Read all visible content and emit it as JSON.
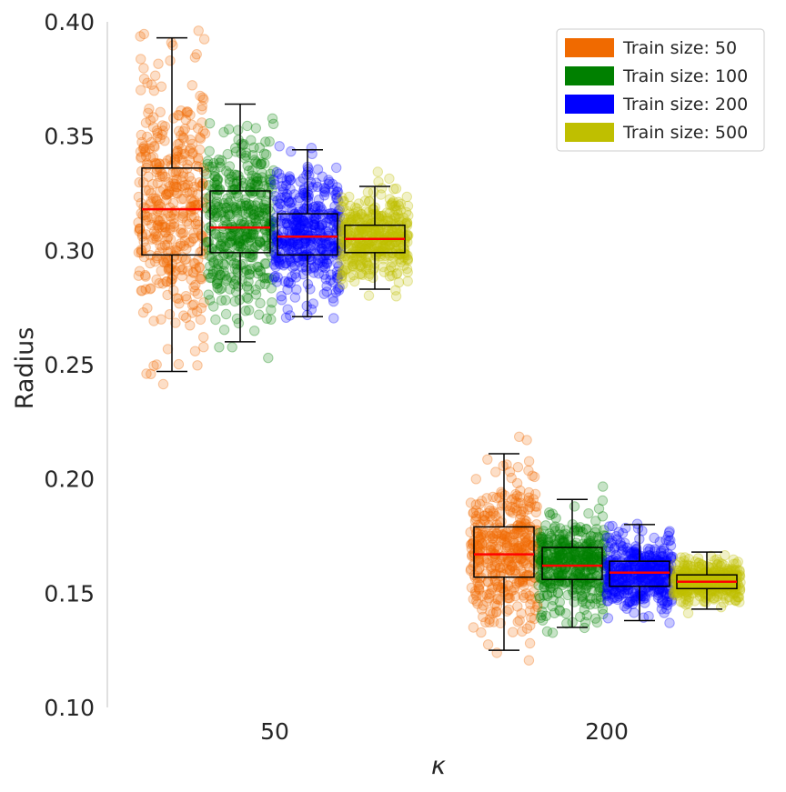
{
  "chart_data": {
    "type": "box",
    "title": "",
    "xlabel": "κ",
    "ylabel": "Radius",
    "categories": [
      "50",
      "200"
    ],
    "ylim": [
      0.1,
      0.4
    ],
    "yticks": [
      "0.10",
      "0.15",
      "0.20",
      "0.25",
      "0.30",
      "0.35",
      "0.40"
    ],
    "grid": false,
    "legend_position": "top-right",
    "series": [
      {
        "name": "Train size: 50",
        "color": "#f06a00",
        "boxes": [
          {
            "whisker_low": 0.247,
            "q1": 0.298,
            "median": 0.318,
            "q3": 0.336,
            "whisker_high": 0.393,
            "points_min": 0.24,
            "points_max": 0.4
          },
          {
            "whisker_low": 0.125,
            "q1": 0.157,
            "median": 0.167,
            "q3": 0.179,
            "whisker_high": 0.211,
            "points_min": 0.118,
            "points_max": 0.23
          }
        ]
      },
      {
        "name": "Train size: 100",
        "color": "#008000",
        "boxes": [
          {
            "whisker_low": 0.26,
            "q1": 0.299,
            "median": 0.31,
            "q3": 0.326,
            "whisker_high": 0.364,
            "points_min": 0.242,
            "points_max": 0.372
          },
          {
            "whisker_low": 0.135,
            "q1": 0.156,
            "median": 0.162,
            "q3": 0.17,
            "whisker_high": 0.191,
            "points_min": 0.13,
            "points_max": 0.206
          }
        ]
      },
      {
        "name": "Train size: 200",
        "color": "#0000ff",
        "boxes": [
          {
            "whisker_low": 0.271,
            "q1": 0.298,
            "median": 0.306,
            "q3": 0.316,
            "whisker_high": 0.344,
            "points_min": 0.261,
            "points_max": 0.352
          },
          {
            "whisker_low": 0.138,
            "q1": 0.153,
            "median": 0.159,
            "q3": 0.164,
            "whisker_high": 0.18,
            "points_min": 0.133,
            "points_max": 0.186
          }
        ]
      },
      {
        "name": "Train size: 500",
        "color": "#bfbf00",
        "boxes": [
          {
            "whisker_low": 0.283,
            "q1": 0.299,
            "median": 0.305,
            "q3": 0.311,
            "whisker_high": 0.328,
            "points_min": 0.279,
            "points_max": 0.339
          },
          {
            "whisker_low": 0.143,
            "q1": 0.152,
            "median": 0.155,
            "q3": 0.158,
            "whisker_high": 0.168,
            "points_min": 0.141,
            "points_max": 0.169
          }
        ]
      }
    ],
    "box_style": {
      "box_color": "#000000",
      "median_color": "#ff0000"
    }
  }
}
